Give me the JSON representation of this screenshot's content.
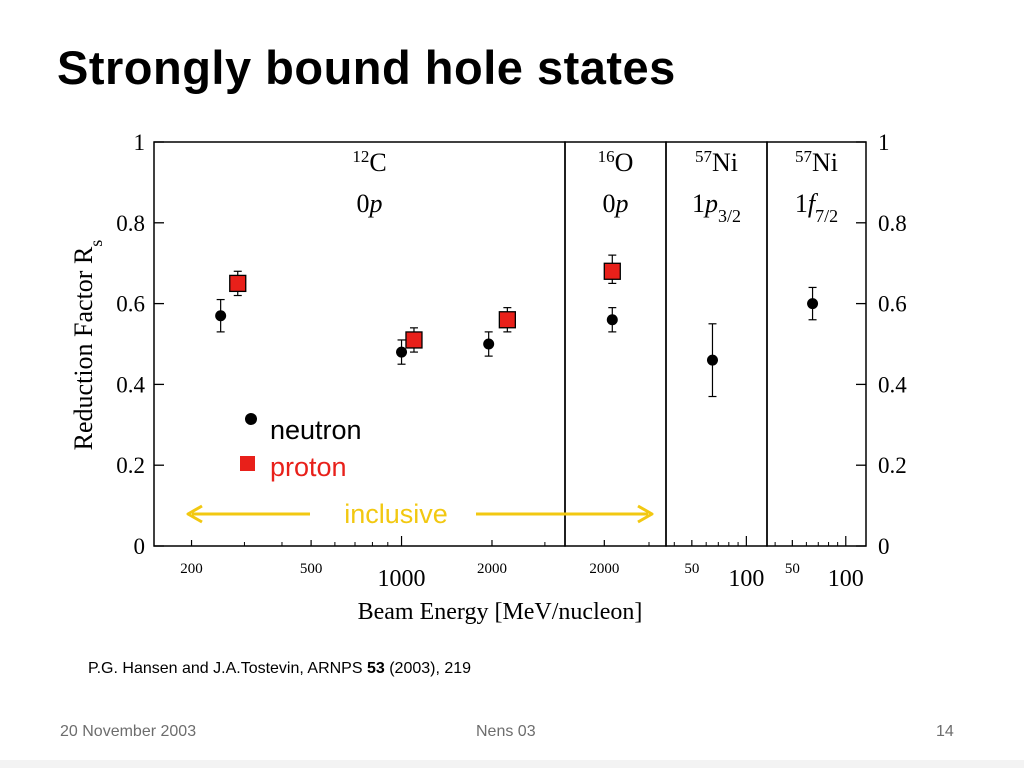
{
  "slide": {
    "title": "Strongly bound hole states",
    "citation": {
      "pre": "P.G. Hansen and J.A.Tostevin, ARNPS ",
      "bold": "53",
      "post": " (2003), 219"
    },
    "footer": {
      "date": "20 November 2003",
      "center": "Nens 03",
      "page": "14"
    }
  },
  "chart_data": {
    "type": "scatter",
    "ylabel": {
      "main": "Reduction Factor R",
      "sub": "s"
    },
    "xlabel": "Beam Energy   [MeV/nucleon]",
    "ylim": [
      0,
      1
    ],
    "yticks": [
      "0",
      "0.2",
      "0.4",
      "0.6",
      "0.8",
      "1"
    ],
    "colors": {
      "neutron": "#000000",
      "proton": "#e8201a",
      "inclusive": "#f2c811"
    },
    "legend": {
      "neutron": "neutron",
      "proton": "proton",
      "placement": "lower-left"
    },
    "inclusive_label": "inclusive",
    "panels": [
      {
        "nucleus_mass": "12",
        "nucleus": "C",
        "orbital_num": "0",
        "orbital_l": "p",
        "orbital_sub": "",
        "xscale": "log",
        "xlim": [
          150,
          3500
        ],
        "xticks": [
          {
            "v": 200,
            "label": "200",
            "major": false
          },
          {
            "v": 500,
            "label": "500",
            "major": false
          },
          {
            "v": 1000,
            "label": "1000",
            "major": true
          },
          {
            "v": 2000,
            "label": "2000",
            "major": false
          }
        ],
        "neutron": [
          {
            "x": 250,
            "y": 0.57,
            "lo": 0.53,
            "hi": 0.61
          },
          {
            "x": 1000,
            "y": 0.48,
            "lo": 0.45,
            "hi": 0.51
          },
          {
            "x": 1950,
            "y": 0.5,
            "lo": 0.47,
            "hi": 0.53
          }
        ],
        "proton": [
          {
            "x": 285,
            "y": 0.65,
            "lo": 0.62,
            "hi": 0.68
          },
          {
            "x": 1100,
            "y": 0.51,
            "lo": 0.48,
            "hi": 0.54
          },
          {
            "x": 2250,
            "y": 0.56,
            "lo": 0.53,
            "hi": 0.59
          }
        ]
      },
      {
        "nucleus_mass": "16",
        "nucleus": "O",
        "orbital_num": "0",
        "orbital_l": "p",
        "orbital_sub": "",
        "xscale": "log",
        "xlim": [
          1400,
          3500
        ],
        "xticks": [
          {
            "v": 2000,
            "label": "2000",
            "major": false
          }
        ],
        "neutron": [
          {
            "x": 2150,
            "y": 0.56,
            "lo": 0.53,
            "hi": 0.59
          }
        ],
        "proton": [
          {
            "x": 2150,
            "y": 0.68,
            "lo": 0.65,
            "hi": 0.72
          }
        ]
      },
      {
        "nucleus_mass": "57",
        "nucleus": "Ni",
        "orbital_num": "1",
        "orbital_l": "p",
        "orbital_sub": "3/2",
        "xscale": "log",
        "xlim": [
          36,
          130
        ],
        "xticks": [
          {
            "v": 50,
            "label": "50",
            "major": false
          },
          {
            "v": 100,
            "label": "100",
            "major": true
          }
        ],
        "neutron": [
          {
            "x": 65,
            "y": 0.46,
            "lo": 0.37,
            "hi": 0.55
          }
        ],
        "proton": []
      },
      {
        "nucleus_mass": "57",
        "nucleus": "Ni",
        "orbital_num": "1",
        "orbital_l": "f",
        "orbital_sub": "7/2",
        "xscale": "log",
        "xlim": [
          36,
          130
        ],
        "xticks": [
          {
            "v": 50,
            "label": "50",
            "major": false
          },
          {
            "v": 100,
            "label": "100",
            "major": true
          }
        ],
        "neutron": [
          {
            "x": 65,
            "y": 0.6,
            "lo": 0.56,
            "hi": 0.64
          }
        ],
        "proton": []
      }
    ]
  }
}
